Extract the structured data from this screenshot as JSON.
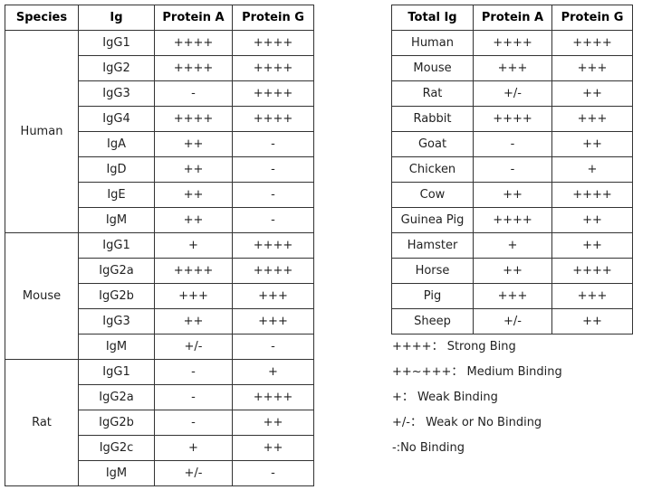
{
  "left_table": {
    "headers": [
      "Species",
      "Ig",
      "Protein A",
      "Protein G"
    ],
    "groups": [
      {
        "species": "Human",
        "rows": [
          [
            "IgG1",
            "++++",
            "++++"
          ],
          [
            "IgG2",
            "++++",
            "++++"
          ],
          [
            "IgG3",
            "-",
            "++++"
          ],
          [
            "IgG4",
            "++++",
            "++++"
          ],
          [
            "IgA",
            "++",
            "-"
          ],
          [
            "IgD",
            "++",
            "-"
          ],
          [
            "IgE",
            "++",
            "-"
          ],
          [
            "IgM",
            "++",
            "-"
          ]
        ]
      },
      {
        "species": "Mouse",
        "rows": [
          [
            "IgG1",
            "+",
            "++++"
          ],
          [
            "IgG2a",
            "++++",
            "++++"
          ],
          [
            "IgG2b",
            "+++",
            "+++"
          ],
          [
            "IgG3",
            "++",
            "+++"
          ],
          [
            "IgM",
            "+/-",
            "-"
          ]
        ]
      },
      {
        "species": "Rat",
        "rows": [
          [
            "IgG1",
            "-",
            "+"
          ],
          [
            "IgG2a",
            "-",
            "++++"
          ],
          [
            "IgG2b",
            "-",
            "++"
          ],
          [
            "IgG2c",
            "+",
            "++"
          ],
          [
            "IgM",
            "+/-",
            "-"
          ]
        ]
      }
    ]
  },
  "right_table": {
    "headers": [
      "Total Ig",
      "Protein A",
      "Protein G"
    ],
    "rows": [
      [
        "Human",
        "++++",
        "++++"
      ],
      [
        "Mouse",
        "+++",
        "+++"
      ],
      [
        "Rat",
        "+/-",
        "++"
      ],
      [
        "Rabbit",
        "++++",
        "+++"
      ],
      [
        "Goat",
        "-",
        "++"
      ],
      [
        "Chicken",
        "-",
        "+"
      ],
      [
        "Cow",
        "++",
        "++++"
      ],
      [
        "Guinea Pig",
        "++++",
        "++"
      ],
      [
        "Hamster",
        "+",
        "++"
      ],
      [
        "Horse",
        "++",
        "++++"
      ],
      [
        "Pig",
        "+++",
        "+++"
      ],
      [
        "Sheep",
        "+/-",
        "++"
      ]
    ]
  },
  "legend": [
    "++++： Strong Bing",
    "++~+++： Medium Binding",
    "+： Weak Binding",
    "+/-： Weak or No Binding",
    "-:No Binding"
  ]
}
